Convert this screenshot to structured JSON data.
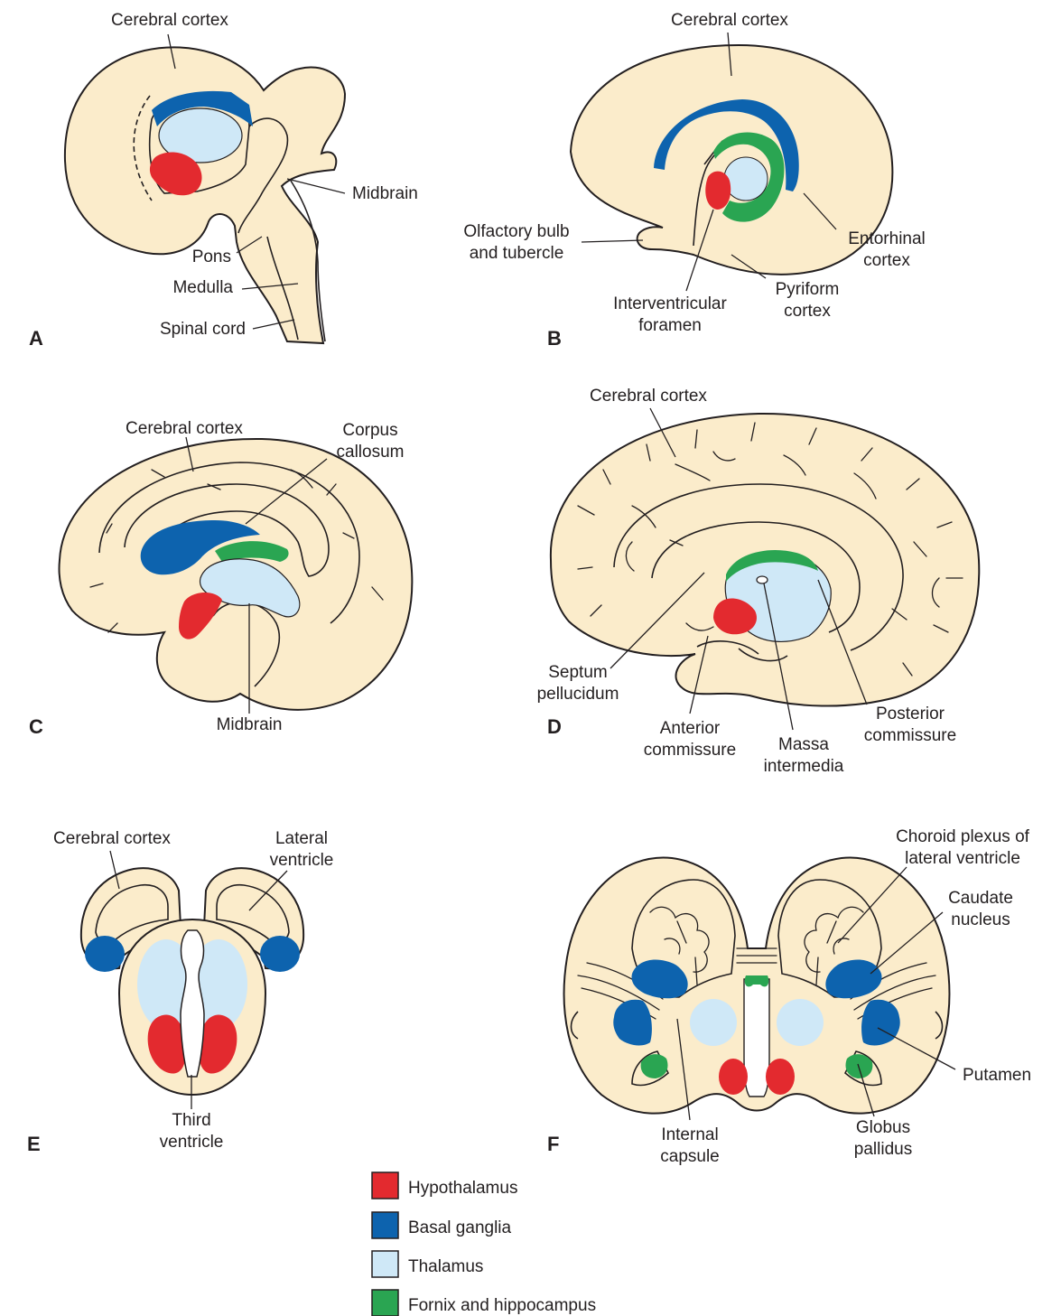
{
  "colors": {
    "hypothalamus": "#e32a2f",
    "basal_ganglia": "#0d63ae",
    "thalamus": "#cfe8f7",
    "fornix": "#2aa552",
    "brain_fill": "#fbeccb",
    "outline": "#231f20"
  },
  "panels": {
    "A": {
      "letter": "A",
      "labels": {
        "cerebral_cortex": "Cerebral cortex",
        "midbrain": "Midbrain",
        "pons": "Pons",
        "medulla": "Medulla",
        "spinal_cord": "Spinal cord"
      }
    },
    "B": {
      "letter": "B",
      "labels": {
        "cerebral_cortex": "Cerebral cortex",
        "olfactory_1": "Olfactory bulb",
        "olfactory_2": "and tubercle",
        "entorhinal_1": "Entorhinal",
        "entorhinal_2": "cortex",
        "interventricular_1": "Interventricular",
        "interventricular_2": "foramen",
        "pyriform_1": "Pyriform",
        "pyriform_2": "cortex"
      }
    },
    "C": {
      "letter": "C",
      "labels": {
        "cerebral_cortex": "Cerebral cortex",
        "corpus_1": "Corpus",
        "corpus_2": "callosum",
        "midbrain": "Midbrain"
      }
    },
    "D": {
      "letter": "D",
      "labels": {
        "cerebral_cortex": "Cerebral cortex",
        "septum_1": "Septum",
        "septum_2": "pellucidum",
        "anterior_1": "Anterior",
        "anterior_2": "commissure",
        "massa_1": "Massa",
        "massa_2": "intermedia",
        "posterior_1": "Posterior",
        "posterior_2": "commissure"
      }
    },
    "E": {
      "letter": "E",
      "labels": {
        "cerebral_cortex": "Cerebral cortex",
        "lateral_1": "Lateral",
        "lateral_2": "ventricle",
        "third_1": "Third",
        "third_2": "ventricle"
      }
    },
    "F": {
      "letter": "F",
      "labels": {
        "choroid_1": "Choroid plexus of",
        "choroid_2": "lateral ventricle",
        "caudate_1": "Caudate",
        "caudate_2": "nucleus",
        "putamen": "Putamen",
        "internal_1": "Internal",
        "internal_2": "capsule",
        "globus_1": "Globus",
        "globus_2": "pallidus"
      }
    }
  },
  "legend": [
    {
      "label": "Hypothalamus",
      "color": "#e32a2f"
    },
    {
      "label": "Basal ganglia",
      "color": "#0d63ae"
    },
    {
      "label": "Thalamus",
      "color": "#cfe8f7"
    },
    {
      "label": "Fornix and hippocampus",
      "color": "#2aa552"
    }
  ]
}
